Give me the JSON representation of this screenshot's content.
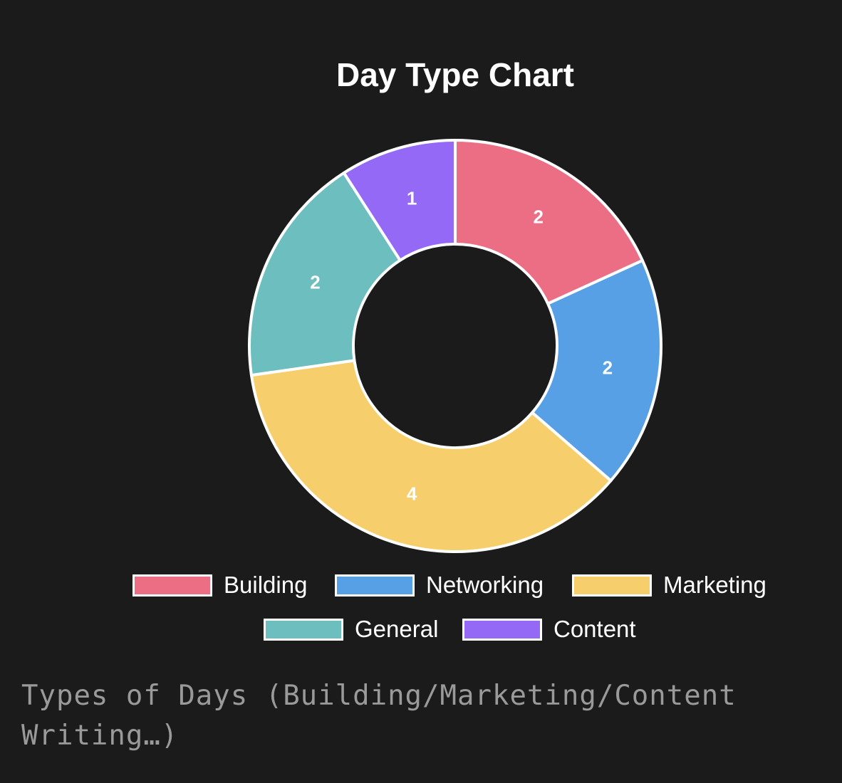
{
  "chart_data": {
    "type": "pie",
    "variant": "doughnut",
    "title": "Day Type Chart",
    "categories": [
      "Building",
      "Networking",
      "Marketing",
      "General",
      "Content"
    ],
    "values": [
      2,
      2,
      4,
      2,
      1
    ],
    "colors": [
      "#ec6e85",
      "#58a0e5",
      "#f6ce6c",
      "#6dbebe",
      "#9369f5"
    ],
    "data_labels": [
      "2",
      "2",
      "4",
      "2",
      "1"
    ],
    "legend_position": "bottom"
  },
  "caption": "Types of Days (Building/Marketing/Content Writing…)"
}
